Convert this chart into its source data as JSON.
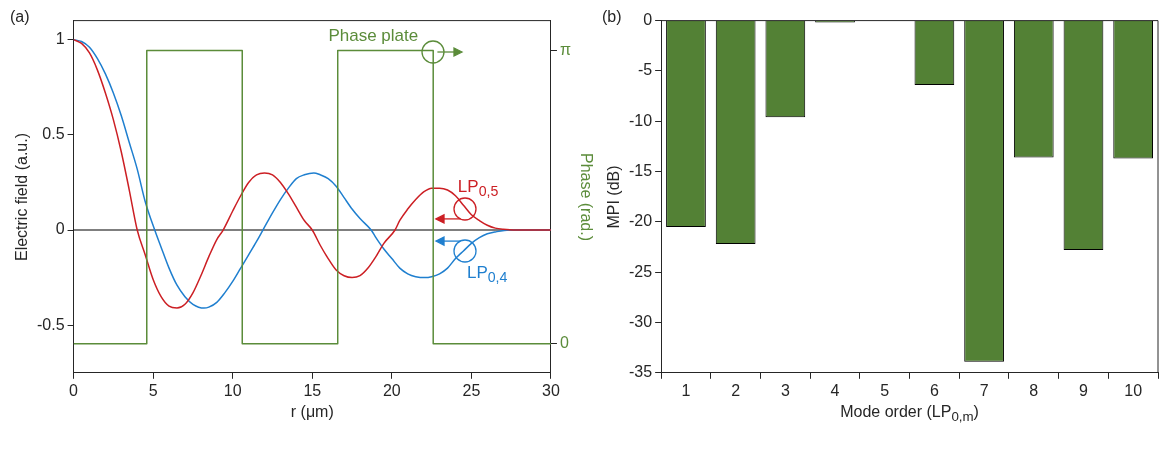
{
  "chart_data": [
    {
      "type": "line",
      "title": "(a)",
      "xlabel": "r (μm)",
      "ylabel": "Electric field (a.u.)",
      "y2label": "Phase (rad.)",
      "xlim": [
        0,
        30
      ],
      "xticks": [
        0,
        5,
        10,
        15,
        20,
        25,
        30
      ],
      "ylim": [
        -0.75,
        1.1
      ],
      "yticks": [
        -0.5,
        0,
        0.5,
        1
      ],
      "y2lim": [
        -0.31,
        3.46
      ],
      "y2ticks": [
        {
          "value": 0,
          "label": "0"
        },
        {
          "value": 3.14,
          "label": "π"
        }
      ],
      "grid": false,
      "ref_lines": [
        {
          "axis": "y",
          "value": 0,
          "color": "#000000"
        }
      ],
      "series": [
        {
          "name": "Phase plate",
          "color": "#5b8c3a",
          "axis": "y2",
          "x": [
            0,
            4.6,
            4.6,
            10.6,
            10.6,
            16.6,
            16.6,
            22.6,
            22.6,
            30
          ],
          "values": [
            0,
            0,
            3.14,
            3.14,
            0,
            0,
            3.14,
            3.14,
            0,
            0
          ]
        },
        {
          "name": "LP$_{0,5}$",
          "color": "#cc1f24",
          "x": [
            0,
            0.5,
            1,
            1.5,
            2,
            2.5,
            3,
            3.5,
            4,
            4.5,
            5,
            5.5,
            6,
            6.5,
            7,
            7.5,
            8,
            8.5,
            9,
            9.4,
            10,
            10.5,
            11,
            11.5,
            12,
            12.5,
            13,
            13.5,
            14,
            14.5,
            15,
            15.5,
            16,
            16.5,
            17,
            17.5,
            18,
            18.5,
            19,
            19.5,
            20.2,
            20.5,
            21,
            21.5,
            22,
            22.5,
            23,
            23.5,
            24,
            24.5,
            25,
            25.5,
            26,
            26.5,
            27,
            28,
            30
          ],
          "values": [
            1,
            0.98,
            0.93,
            0.84,
            0.72,
            0.58,
            0.41,
            0.21,
            0,
            -0.13,
            -0.26,
            -0.35,
            -0.4,
            -0.41,
            -0.39,
            -0.33,
            -0.24,
            -0.14,
            -0.05,
            0,
            0.1,
            0.18,
            0.25,
            0.29,
            0.3,
            0.29,
            0.25,
            0.19,
            0.12,
            0.05,
            0,
            -0.08,
            -0.15,
            -0.21,
            -0.24,
            -0.25,
            -0.24,
            -0.2,
            -0.14,
            -0.07,
            0,
            0.05,
            0.11,
            0.16,
            0.2,
            0.22,
            0.22,
            0.21,
            0.18,
            0.13,
            0.08,
            0.05,
            0.025,
            0.01,
            0.004,
            0,
            0
          ]
        },
        {
          "name": "LP$_{0,4}$",
          "color": "#1f7fcf",
          "x": [
            0,
            0.5,
            1,
            1.5,
            2,
            2.5,
            3,
            3.5,
            4,
            4.5,
            5.1,
            5.5,
            6,
            6.5,
            7,
            7.5,
            8.2,
            8.5,
            9,
            9.5,
            10,
            10.5,
            11,
            11.5,
            11.9,
            12.5,
            13,
            13.5,
            14,
            14.5,
            15.1,
            15.5,
            16,
            16.5,
            17,
            17.5,
            18,
            18.7,
            19,
            19.5,
            20,
            20.5,
            21,
            21.5,
            22.1,
            22.5,
            23,
            23.5,
            24,
            24.5,
            25,
            25.5,
            26,
            26.5,
            27.4,
            30
          ],
          "values": [
            1,
            0.99,
            0.96,
            0.9,
            0.82,
            0.72,
            0.6,
            0.46,
            0.32,
            0.15,
            0,
            -0.09,
            -0.2,
            -0.29,
            -0.35,
            -0.39,
            -0.41,
            -0.405,
            -0.38,
            -0.33,
            -0.27,
            -0.2,
            -0.13,
            -0.06,
            0,
            0.09,
            0.16,
            0.22,
            0.27,
            0.29,
            0.3,
            0.29,
            0.27,
            0.23,
            0.17,
            0.11,
            0.06,
            0,
            -0.04,
            -0.1,
            -0.15,
            -0.2,
            -0.23,
            -0.245,
            -0.25,
            -0.245,
            -0.23,
            -0.2,
            -0.15,
            -0.11,
            -0.07,
            -0.04,
            -0.02,
            -0.01,
            0,
            0
          ]
        }
      ]
    },
    {
      "type": "bar",
      "title": "(b)",
      "xlabel": "Mode order (LP$_{0,m}$)",
      "ylabel": "MPI (dB)",
      "categories": [
        "1",
        "2",
        "3",
        "4",
        "5",
        "6",
        "7",
        "8",
        "9",
        "10"
      ],
      "values": [
        -20.5,
        -22.2,
        -9.6,
        -0.2,
        0,
        -6.4,
        -33.9,
        -13.6,
        -22.8,
        -13.7
      ],
      "color": "#538135",
      "ylim": [
        -35,
        0
      ],
      "yticks": [
        -35,
        -30,
        -25,
        -20,
        -15,
        -10,
        -5,
        0
      ],
      "grid": false
    }
  ]
}
